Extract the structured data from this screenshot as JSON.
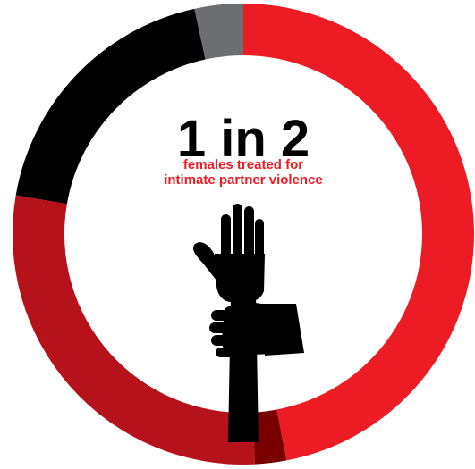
{
  "chart_data": {
    "type": "pie",
    "style": "donut",
    "headline": "1 in 2",
    "subtitle_lines": [
      "females treated for",
      "intimate partner violence"
    ],
    "slices": [
      {
        "value": 47.0,
        "color": "#ED1C24"
      },
      {
        "value": 2.2,
        "color": "#7A0000"
      },
      {
        "value": 28.5,
        "color": "#B5121B"
      },
      {
        "value": 18.9,
        "color": "#000000"
      },
      {
        "value": 3.4,
        "color": "#6D6E71"
      }
    ],
    "center_icon": "hand-grabbing-wrist-icon",
    "text_colors": {
      "headline": "#000000",
      "subtitle": "#ED1C24"
    }
  }
}
